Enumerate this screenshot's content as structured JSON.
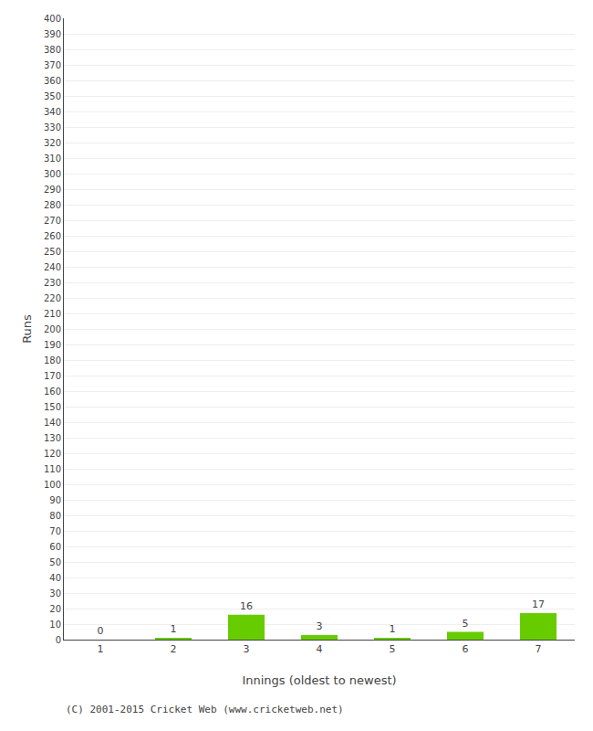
{
  "chart_data": {
    "type": "bar",
    "xlabel": "Innings (oldest to newest)",
    "ylabel": "Runs",
    "categories": [
      "1",
      "2",
      "3",
      "4",
      "5",
      "6",
      "7"
    ],
    "values": [
      0,
      1,
      16,
      3,
      1,
      5,
      17
    ],
    "color": "#66cc00",
    "data_labels": true,
    "ylim": [
      0,
      400
    ],
    "yticks": [
      0,
      10,
      20,
      30,
      40,
      50,
      60,
      70,
      80,
      90,
      100,
      110,
      120,
      130,
      140,
      150,
      160,
      170,
      180,
      190,
      200,
      210,
      220,
      230,
      240,
      250,
      260,
      270,
      280,
      290,
      300,
      310,
      320,
      330,
      340,
      350,
      360,
      370,
      380,
      390,
      400
    ],
    "grid": true,
    "annotations": [
      "(C) 2001-2015 Cricket Web (www.cricketweb.net)"
    ]
  }
}
